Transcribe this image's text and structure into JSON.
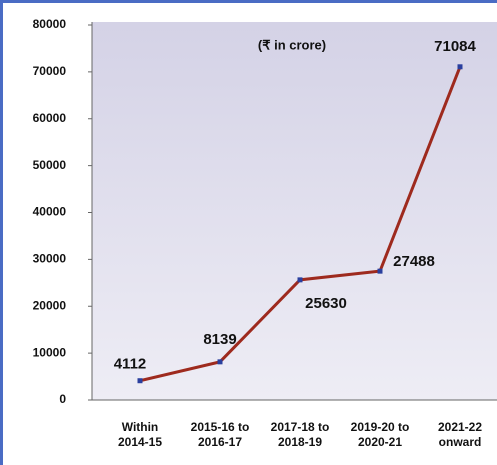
{
  "chart_data": {
    "type": "line",
    "annotation": "(₹ in crore)",
    "categories": [
      "Within\n2014-15",
      "2015-16 to\n2016-17",
      "2017-18 to\n2018-19",
      "2019-20 to\n2020-21",
      "2021-22\nonward"
    ],
    "values": [
      4112,
      8139,
      25630,
      27488,
      71084
    ],
    "color": "#9e2a1e",
    "marker_color": "#2a3f9e",
    "ylim": [
      0,
      80000
    ],
    "yticks": [
      0,
      10000,
      20000,
      30000,
      40000,
      50000,
      60000,
      70000,
      80000
    ]
  }
}
